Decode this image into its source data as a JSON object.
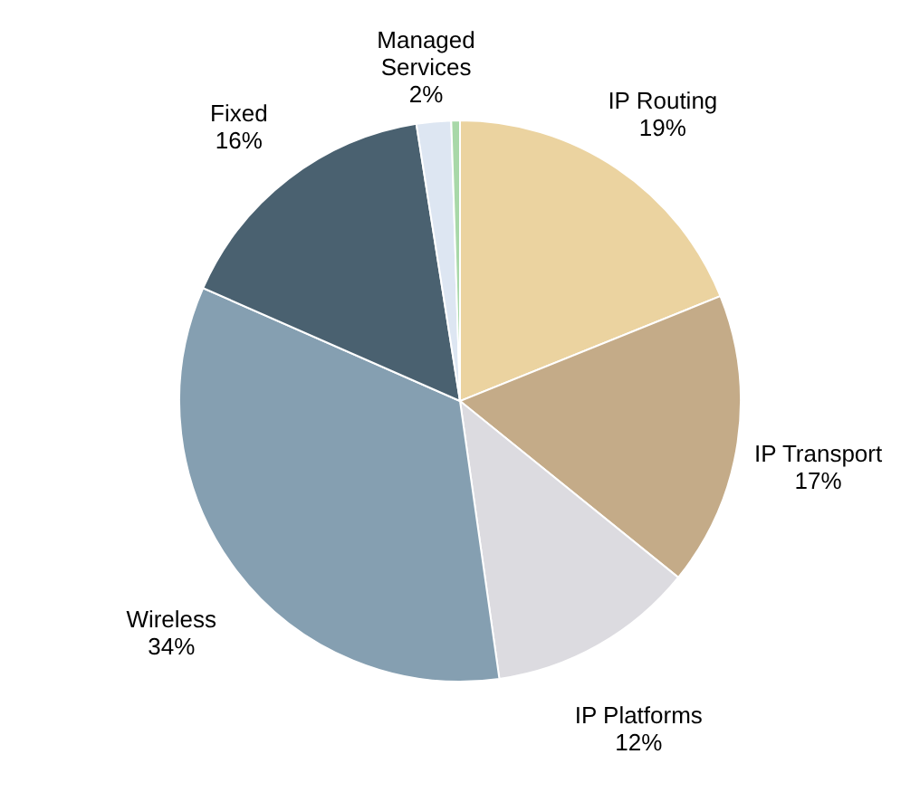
{
  "chart_data": {
    "type": "pie",
    "categories": [
      "IP Routing",
      "IP Transport",
      "IP Platforms",
      "Wireless",
      "Fixed",
      "Managed Services",
      null
    ],
    "values": [
      19,
      17,
      12,
      34,
      16,
      2,
      0.5
    ],
    "value_labels": [
      "19%",
      "17%",
      "12%",
      "34%",
      "16%",
      "2%",
      null
    ],
    "colors": [
      "#ebd3a0",
      "#c4ab88",
      "#dcdbe0",
      "#859fb1",
      "#4a6170",
      "#dde6f2",
      "#a8d8a8"
    ]
  }
}
